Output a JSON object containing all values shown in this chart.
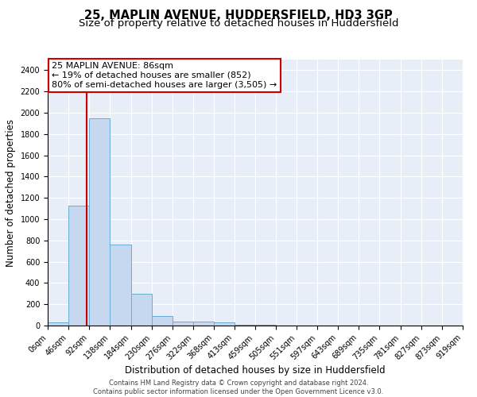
{
  "title1": "25, MAPLIN AVENUE, HUDDERSFIELD, HD3 3GP",
  "title2": "Size of property relative to detached houses in Huddersfield",
  "xlabel": "Distribution of detached houses by size in Huddersfield",
  "ylabel": "Number of detached properties",
  "bin_edges": [
    0,
    46,
    92,
    138,
    184,
    230,
    276,
    322,
    368,
    413,
    459,
    505,
    551,
    597,
    643,
    689,
    735,
    781,
    827,
    873,
    919
  ],
  "bar_heights": [
    30,
    1130,
    1950,
    760,
    300,
    90,
    40,
    40,
    30,
    10,
    5,
    3,
    2,
    2,
    1,
    1,
    1,
    1,
    1,
    1
  ],
  "bar_color": "#c5d8ef",
  "bar_edge_color": "#6aadd5",
  "vline_x": 86,
  "vline_color": "#cc0000",
  "annotation_text": "25 MAPLIN AVENUE: 86sqm\n← 19% of detached houses are smaller (852)\n80% of semi-detached houses are larger (3,505) →",
  "annotation_box_color": "#ffffff",
  "annotation_box_edge": "#cc0000",
  "ylim": [
    0,
    2500
  ],
  "yticks": [
    0,
    200,
    400,
    600,
    800,
    1000,
    1200,
    1400,
    1600,
    1800,
    2000,
    2200,
    2400
  ],
  "background_color": "#e8eef8",
  "grid_color": "#ffffff",
  "footer_text": "Contains HM Land Registry data © Crown copyright and database right 2024.\nContains public sector information licensed under the Open Government Licence v3.0.",
  "title1_fontsize": 10.5,
  "title2_fontsize": 9.5,
  "xlabel_fontsize": 8.5,
  "ylabel_fontsize": 8.5,
  "tick_fontsize": 7,
  "annotation_fontsize": 8,
  "footer_fontsize": 6
}
